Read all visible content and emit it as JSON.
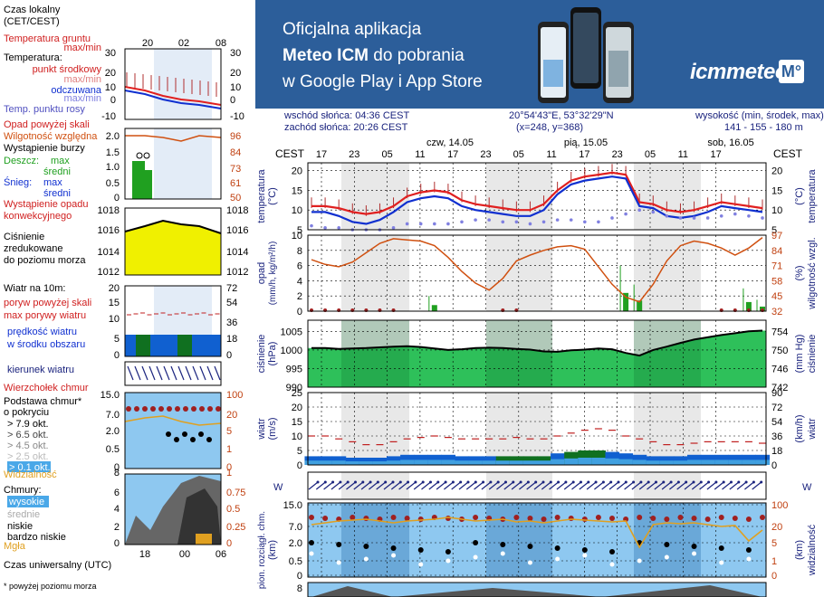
{
  "banner": {
    "line1": "Oficjalna aplikacja",
    "line2_pre": "Meteo ICM",
    "line2_post": " do pobrania",
    "line3": "w Google Play i App Store",
    "logo": "icmmeteo",
    "badge": "M°"
  },
  "info": {
    "sunrise": "wschód słońca: 04:36 CEST",
    "sunset": "zachód słońca: 20:26 CEST",
    "coords": "20°54'43\"E, 53°32'29\"N",
    "grid": "(x=248,  y=368)",
    "height_label": "wysokość (min, środek, max)",
    "height_values": "141 - 155 - 180 m"
  },
  "days": [
    "czw, 14.05",
    "pią, 15.05",
    "sob, 16.05"
  ],
  "hour_ticks": [
    "17",
    "23",
    "05",
    "11",
    "17",
    "23",
    "05",
    "11",
    "17",
    "23",
    "05",
    "11",
    "17"
  ],
  "cest": "CEST",
  "legend": {
    "time_local": "Czas lokalny",
    "time_local2": "(CET/CEST)",
    "legend_hours_top": [
      "20",
      "02",
      "08"
    ],
    "soil_temp": "Temperatura gruntu",
    "soil_maxmin": "max/min",
    "temperature": "Temperatura:",
    "mid_point": "punkt środkowy",
    "max_min": "max/min",
    "felt": "odczuwana",
    "felt_maxmin": "max/min",
    "dew": "Temp. punktu rosy",
    "temp_ticks": [
      "30",
      "20",
      "10",
      "0",
      "-10"
    ],
    "precip_above": "Opad powyżej skali",
    "humidity": "Wilgotność względna",
    "storm": "Wystąpienie burzy",
    "rain": "Deszcz:",
    "rain_max": "max",
    "rain_mean": "średni",
    "snow": "Śnieg:",
    "snow_max": "max",
    "snow_mean": "średni",
    "precip_occ": "Wystąpienie opadu",
    "precip_occ2": "konwekcyjnego",
    "precip_ticks": [
      "2.0",
      "1.5",
      "1.0",
      "0.5",
      "0"
    ],
    "hum_ticks": [
      "96",
      "84",
      "73",
      "61",
      "50"
    ],
    "pressure": "Ciśnienie",
    "pressure2": "zredukowane",
    "pressure3": "do poziomu morza",
    "pres_ticks": [
      "1018",
      "1016",
      "1014",
      "1012"
    ],
    "wind_label": "Wiatr na 10m:",
    "gust_above": "poryw powyżej skali",
    "gust_max": "max porywy wiatru",
    "wind_speed": "prędkość wiatru",
    "wind_area": "w środku obszaru",
    "wind_ticks_l": [
      "20",
      "15",
      "10",
      "5",
      "0"
    ],
    "wind_ticks_r": [
      "72",
      "54",
      "36",
      "18",
      "0"
    ],
    "wind_dir": "kierunek wiatru",
    "cloud_top": "Wierzchołek chmur",
    "cloud_base": "Podstawa chmur*",
    "cloud_cover": "o pokryciu",
    "okt1": "> 7.9 okt.",
    "okt2": "> 6.5 okt.",
    "okt3": "> 4.5 okt.",
    "okt4": "> 2.5 okt.",
    "okt5": "> 0.1 okt.",
    "cb_ticks_l": [
      "15.0",
      "7.0",
      "2.0",
      "0.5",
      "0"
    ],
    "cb_ticks_r": [
      "100",
      "20",
      "5",
      "1",
      "0"
    ],
    "visibility": "Widzialność",
    "vis_tick": "8",
    "vis_tick_r": "1",
    "clouds": "Chmury:",
    "cl_high": "wysokie",
    "cl_mid": "średnie",
    "cl_low": "niskie",
    "cl_vlow": "bardzo niskie",
    "fog": "Mgła",
    "cl_ticks_l": [
      "6",
      "4",
      "2",
      "0"
    ],
    "cl_ticks_r": [
      "0.75",
      "0.5",
      "0.25",
      "0"
    ],
    "utc": "Czas uniwersalny (UTC)",
    "utc_hours": [
      "18",
      "00",
      "06"
    ],
    "footnote": "* powyżej poziomu morza"
  },
  "axis_labels": {
    "temp_l": "temperatura",
    "temp_l2": "(°C)",
    "temp_r": "temperatura",
    "temp_r2": "(°C)",
    "precip_l": "opad",
    "precip_l2": "(mm/h, kg/m²/h)",
    "hum_r": "wilgotność wzgl.",
    "hum_r2": "(%)",
    "pres_l": "ciśnienie",
    "pres_l2": "(hPa)",
    "pres_r": "ciśnienie",
    "pres_r2": "(mm Hg)",
    "wind_l": "wiatr",
    "wind_l2": "(m/s)",
    "wind_r": "wiatr",
    "wind_r2": "(km/h)",
    "cb_l": "pion. rozciągł. chm.",
    "cb_l2": "(km)",
    "vis_r": "widzialność",
    "vis_r2": "(km)"
  },
  "colors": {
    "temp": "#e02020",
    "felt": "#1030d0",
    "dew": "#8080e0",
    "humidity": "#d05010",
    "rain": "#20a020",
    "pressure": "#10c050",
    "wind": "#1060d0",
    "night": "#e8e8e8"
  },
  "chart_data": [
    {
      "type": "line",
      "name": "temperature",
      "ylim": [
        5,
        22
      ],
      "yticks": [
        5,
        10,
        15,
        20
      ],
      "series": [
        {
          "name": "temperature",
          "values": [
            11,
            11,
            10.5,
            9.5,
            9,
            9.5,
            11,
            13.5,
            14.5,
            15,
            14.5,
            12.5,
            11.5,
            11,
            10.5,
            10,
            10,
            11.5,
            15,
            17.5,
            18.5,
            19,
            19.5,
            19,
            12,
            11.5,
            10,
            9.5,
            10,
            11,
            12,
            11.5,
            11,
            10.5
          ]
        },
        {
          "name": "felt",
          "values": [
            9.5,
            9.5,
            8.5,
            7,
            6.5,
            7.5,
            9.5,
            12,
            13,
            13.5,
            13,
            11,
            10,
            9.5,
            9,
            8.5,
            8.5,
            10,
            14,
            16.5,
            17.5,
            18,
            18.5,
            18,
            11,
            10.5,
            8.5,
            8,
            8.5,
            9.5,
            11,
            10.5,
            10,
            9.5
          ]
        },
        {
          "name": "dew",
          "values": [
            6,
            5.5,
            5.5,
            5,
            5,
            5,
            5.5,
            6.5,
            6.5,
            6.5,
            6.5,
            7,
            7.5,
            7.5,
            7,
            7,
            6.5,
            7,
            7.5,
            7.5,
            7,
            7,
            8,
            9,
            10,
            9.5,
            8.5,
            8,
            8,
            8,
            8.5,
            9,
            8.5,
            8
          ]
        }
      ]
    },
    {
      "type": "bar",
      "name": "precipitation",
      "ylim": [
        0,
        10
      ],
      "yticks": [
        0,
        2,
        4,
        6,
        8,
        10
      ],
      "y2ticks": [
        32,
        45,
        58,
        71,
        84,
        97
      ],
      "humidity": [
        76,
        72,
        70,
        74,
        82,
        90,
        94,
        93,
        92,
        88,
        78,
        66,
        56,
        50,
        60,
        75,
        80,
        84,
        87,
        88,
        85,
        70,
        55,
        44,
        40,
        55,
        75,
        88,
        92,
        90,
        86,
        80,
        86,
        95
      ],
      "rain": [
        0,
        0,
        0,
        0,
        0,
        0,
        0,
        0,
        0,
        0.8,
        0,
        0,
        0,
        0,
        0,
        0,
        0,
        0,
        0,
        0,
        0,
        0,
        0,
        2.4,
        1.4,
        0,
        0,
        0,
        0,
        0,
        0,
        0,
        1.2,
        0.6
      ]
    },
    {
      "type": "area",
      "name": "pressure",
      "ylim": [
        990,
        1008
      ],
      "yticks": [
        990,
        995,
        1000,
        1005
      ],
      "y2ticks": [
        742,
        746,
        750,
        754
      ],
      "values": [
        1000.5,
        1000.5,
        1000.3,
        1000.4,
        1000.5,
        1000.7,
        1000.9,
        1001,
        1000.8,
        1000.4,
        1000,
        1000.2,
        1000.5,
        1000.6,
        1000.5,
        1000.3,
        1000.1,
        999.6,
        999.5,
        999.9,
        1000.1,
        1000.4,
        1000.2,
        999.2,
        998.5,
        1000,
        1000.9,
        1001.9,
        1002.8,
        1003.4,
        1004,
        1004.5,
        1005,
        1005.2
      ]
    },
    {
      "type": "bar",
      "name": "wind",
      "ylim": [
        0,
        25
      ],
      "yticks": [
        0,
        5,
        10,
        15,
        20,
        25
      ],
      "y2ticks": [
        0,
        18,
        36,
        54,
        72,
        90
      ],
      "speed": [
        3,
        3,
        3,
        2.5,
        2.5,
        2.5,
        3,
        3.5,
        3.5,
        3.5,
        3.5,
        3,
        3,
        3,
        3,
        3,
        3,
        3,
        4,
        4.5,
        5,
        5,
        4.5,
        4,
        3.5,
        3,
        3,
        3,
        3.5,
        3.5,
        3.5,
        3.5,
        3.5,
        3.5
      ],
      "gust": [
        10,
        10,
        9,
        8,
        7,
        7,
        8,
        9,
        9.5,
        10,
        9.5,
        9,
        9,
        9,
        9,
        9.5,
        9,
        9,
        10,
        11,
        12,
        12.5,
        12,
        10,
        9,
        8,
        7,
        7,
        7.5,
        8,
        8,
        8,
        8,
        7.5
      ]
    }
  ]
}
